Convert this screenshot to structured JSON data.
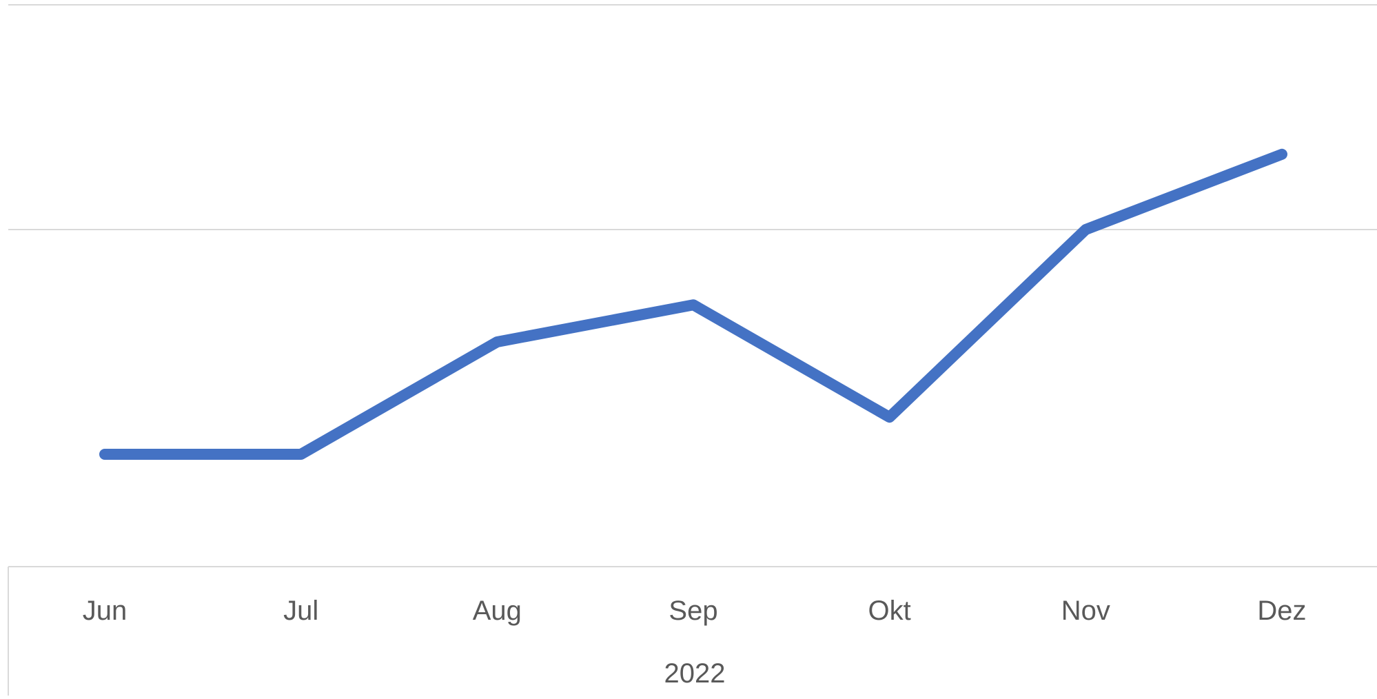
{
  "chart_data": {
    "type": "line",
    "categories": [
      "Jun",
      "Jul",
      "Aug",
      "Sep",
      "Okt",
      "Nov",
      "Dez"
    ],
    "group_label": "2022",
    "series": [
      {
        "values": [
          1.0,
          1.0,
          2.0,
          2.33,
          1.33,
          3.0,
          3.67
        ]
      }
    ],
    "ylim": [
      0,
      5
    ],
    "gridlines_y": [
      3,
      5
    ],
    "grid": true,
    "legend": "none",
    "colors": {
      "line": "#4472C4",
      "grid": "#D9D9D9",
      "axis": "#D9D9D9",
      "text": "#595959"
    }
  }
}
